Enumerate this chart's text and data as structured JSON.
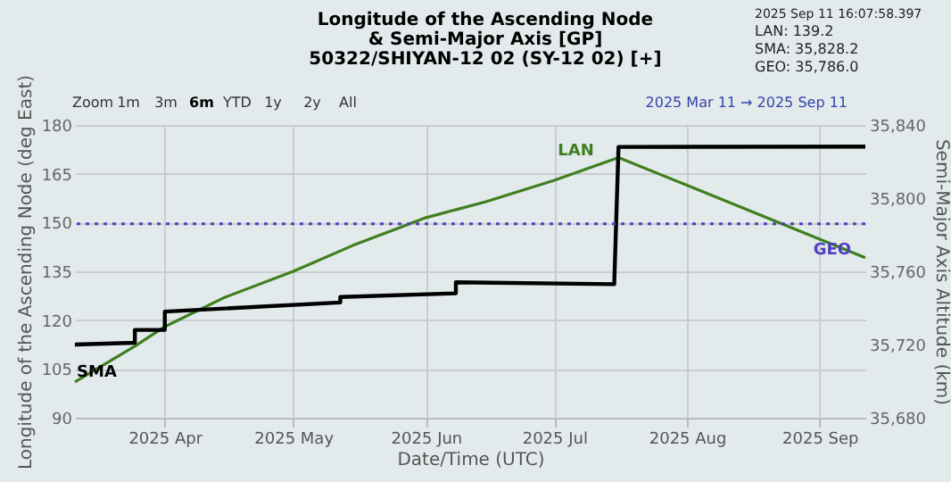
{
  "chart_data": {
    "type": "line",
    "title": "Longitude of the Ascending Node & Semi-Major Axis [GP]",
    "subtitle": "50322/SHIYAN-12 02 (SY-12 02) [+]",
    "xlabel": "Date/Time (UTC)",
    "ylabel": "Longitude of the Ascending Node (deg East)",
    "y2label": "Semi-Major Axis Altitude (km)",
    "series": [
      {
        "name": "LAN",
        "color": "#3f7f1f",
        "x": [
          "2025-03-11",
          "2025-03-25",
          "2025-04-01",
          "2025-04-15",
          "2025-05-01",
          "2025-05-15",
          "2025-06-01",
          "2025-06-15",
          "2025-07-01",
          "2025-07-16",
          "2025-09-11T16:07"
        ],
        "values": [
          101,
          112,
          118,
          127,
          135,
          143,
          151.5,
          156.4,
          163,
          170,
          139.2
        ]
      },
      {
        "name": "SMA",
        "color": "#000000",
        "axis": "y2",
        "x": [
          "2025-03-11",
          "2025-03-25",
          "2025-03-25",
          "2025-04-01",
          "2025-04-01",
          "2025-05-12",
          "2025-05-12",
          "2025-06-08",
          "2025-06-08",
          "2025-07-15",
          "2025-07-16",
          "2025-09-11T16:07"
        ],
        "values": [
          35720,
          35721,
          35728,
          35728,
          35738,
          35743,
          35746,
          35748,
          35754,
          35753,
          35828,
          35828.2
        ]
      }
    ],
    "xlim": [
      "2025-03-11",
      "2025-09-11T16:07"
    ],
    "xticks": [
      {
        "value": "2025-04-01",
        "label": "2025 Apr"
      },
      {
        "value": "2025-05-01",
        "label": "2025 May"
      },
      {
        "value": "2025-06-01",
        "label": "2025 Jun"
      },
      {
        "value": "2025-07-01",
        "label": "2025 Jul"
      },
      {
        "value": "2025-08-01",
        "label": "2025 Aug"
      },
      {
        "value": "2025-09-01",
        "label": "2025 Sep"
      }
    ],
    "ylim": [
      90,
      180
    ],
    "yticks": [
      90,
      105,
      120,
      135,
      150,
      165,
      180
    ],
    "y2lim": [
      35680,
      35840
    ],
    "y2ticks": [
      {
        "value": 35680,
        "label": "35,680"
      },
      {
        "value": 35720,
        "label": "35,720"
      },
      {
        "value": 35760,
        "label": "35,760"
      },
      {
        "value": 35800,
        "label": "35,800"
      },
      {
        "value": 35840,
        "label": "35,840"
      }
    ],
    "ref_lines": [
      {
        "axis": "y2",
        "value": 35786,
        "label": "GEO",
        "color": "#5040c0",
        "line_style": "dotted"
      }
    ],
    "grid": true,
    "marker": "none",
    "line_style": "solid",
    "annotations": [
      "Zoom",
      "1m",
      "3m",
      "6m",
      "YTD",
      "1y",
      "2y",
      "All",
      "2025 Mar 11 → 2025 Sep 11",
      "2025 Sep 11 16:07:58.397",
      "LAN: 139.2",
      "SMA: 35,828.2",
      "GEO: 35,786.0"
    ]
  }
}
